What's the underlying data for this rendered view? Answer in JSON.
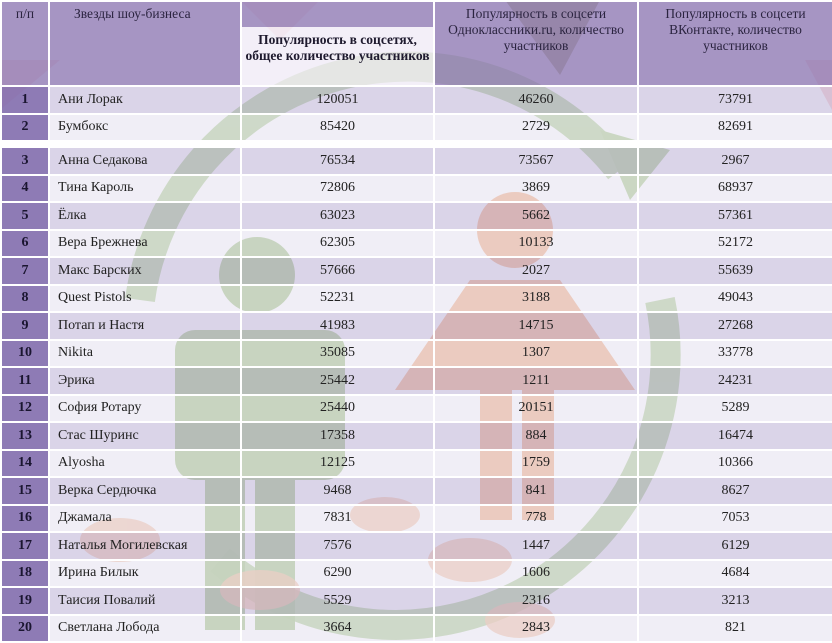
{
  "table": {
    "headers": {
      "num": "п/п",
      "stars": "Звезды шоу-бизнеса",
      "total": "Популярность в соцсетях, общее количество участников",
      "ok": "Популярность в соцсети Одноклассники.ru, количество участников",
      "vk": "Популярность в соцсети ВКонтакте, количество участников"
    },
    "rows": [
      {
        "num": "1",
        "name": "Ани Лорак",
        "total": "120051",
        "ok": "46260",
        "vk": "73791"
      },
      {
        "num": "2",
        "name": "Бумбокс",
        "total": "85420",
        "ok": "2729",
        "vk": "82691"
      },
      {
        "num": "3",
        "name": "Анна Седакова",
        "total": "76534",
        "ok": "73567",
        "vk": "2967"
      },
      {
        "num": "4",
        "name": "Тина Кароль",
        "total": "72806",
        "ok": "3869",
        "vk": "68937"
      },
      {
        "num": "5",
        "name": "Ёлка",
        "total": "63023",
        "ok": "5662",
        "vk": "57361"
      },
      {
        "num": "6",
        "name": "Вера Брежнева",
        "total": "62305",
        "ok": "10133",
        "vk": "52172"
      },
      {
        "num": "7",
        "name": "Макс Барских",
        "total": "57666",
        "ok": "2027",
        "vk": "55639"
      },
      {
        "num": "8",
        "name": "Quest Pistols",
        "total": "52231",
        "ok": "3188",
        "vk": "49043"
      },
      {
        "num": "9",
        "name": "Потап и Настя",
        "total": "41983",
        "ok": "14715",
        "vk": "27268"
      },
      {
        "num": "10",
        "name": "Nikita",
        "total": "35085",
        "ok": "1307",
        "vk": "33778"
      },
      {
        "num": "11",
        "name": "Эрика",
        "total": "25442",
        "ok": "1211",
        "vk": "24231"
      },
      {
        "num": "12",
        "name": "София Ротару",
        "total": "25440",
        "ok": "20151",
        "vk": "5289"
      },
      {
        "num": "13",
        "name": "Стас Шуринс",
        "total": "17358",
        "ok": "884",
        "vk": "16474"
      },
      {
        "num": "14",
        "name": "Alyosha",
        "total": "12125",
        "ok": "1759",
        "vk": "10366"
      },
      {
        "num": "15",
        "name": "Верка Сердючка",
        "total": "9468",
        "ok": "841",
        "vk": "8627"
      },
      {
        "num": "16",
        "name": "Джамала",
        "total": "7831",
        "ok": "778",
        "vk": "7053"
      },
      {
        "num": "17",
        "name": "Наталья Могилевская",
        "total": "7576",
        "ok": "1447",
        "vk": "6129"
      },
      {
        "num": "18",
        "name": "Ирина Билык",
        "total": "6290",
        "ok": "1606",
        "vk": "4684"
      },
      {
        "num": "19",
        "name": "Таисия Повалий",
        "total": "5529",
        "ok": "2316",
        "vk": "3213"
      },
      {
        "num": "20",
        "name": "Светлана Лобода",
        "total": "3664",
        "ok": "2843",
        "vk": "821"
      }
    ]
  },
  "colors": {
    "header": "#9682b9",
    "number_cell": "#8470af",
    "row_odd": "#c4bada",
    "row_even": "#e6e1f0",
    "watermark_green": "#a6c887",
    "watermark_orange": "#f2a878",
    "watermark_olive": "#8a8a3a"
  },
  "watermark": {
    "icons": [
      "male-figure-icon",
      "female-figure-icon",
      "circular-arrow-icon",
      "triangle-icon"
    ]
  }
}
